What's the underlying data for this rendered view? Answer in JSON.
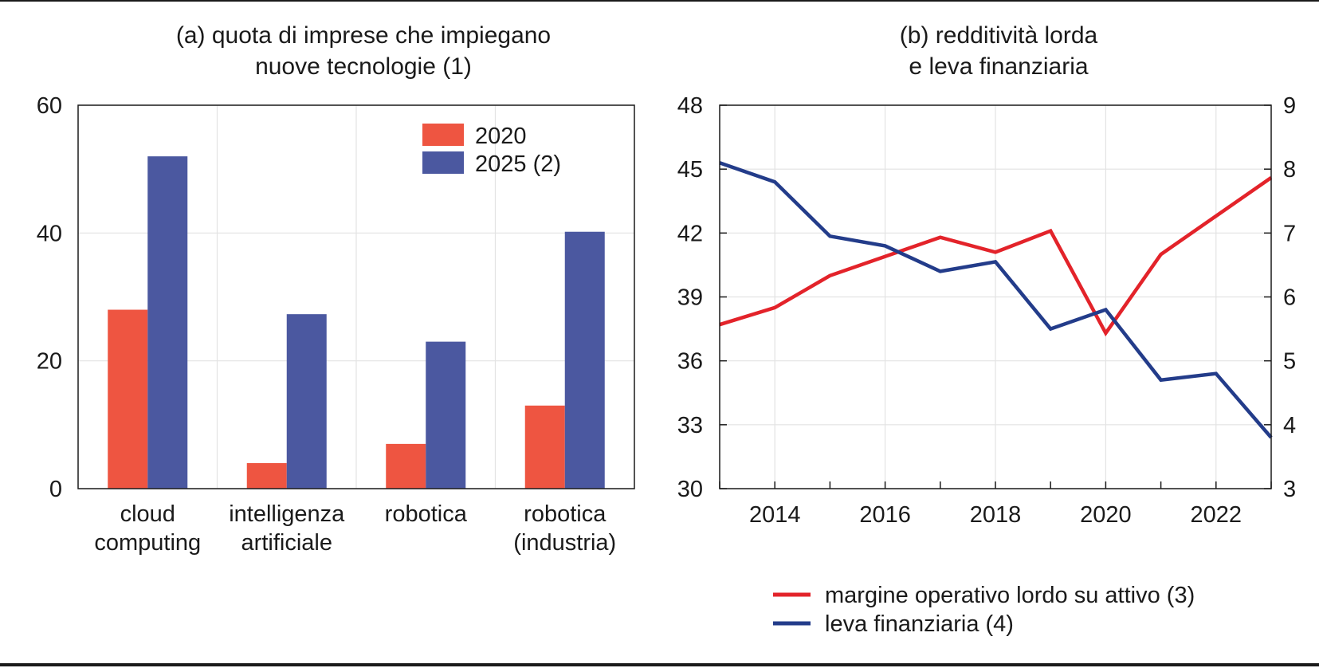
{
  "colors": {
    "red": "#EE5541",
    "blue": "#4B58A0",
    "red_line": "#E3232A",
    "blue_line": "#233C8A",
    "grid": "#E3E3E3",
    "axis": "#1a1a1a"
  },
  "chart_data": [
    {
      "type": "bar",
      "title_lines": [
        "(a) quota di imprese che impiegano",
        "nuove tecnologie (1)"
      ],
      "categories": [
        [
          "cloud",
          "computing"
        ],
        [
          "intelligenza",
          "artificiale"
        ],
        [
          "robotica"
        ],
        [
          "robotica",
          "(industria)"
        ]
      ],
      "series": [
        {
          "name": "2020",
          "values": [
            28,
            4,
            7,
            13
          ]
        },
        {
          "name": "2025 (2)",
          "values": [
            52,
            27.3,
            23,
            40.2
          ]
        }
      ],
      "ylim": [
        0,
        60
      ],
      "yticks": [
        "0",
        "20",
        "40",
        "60"
      ],
      "legend_position": "top-right"
    },
    {
      "type": "line",
      "title_lines": [
        "(b) redditività lorda",
        "e leva finanziaria"
      ],
      "x": [
        2013,
        2014,
        2015,
        2016,
        2017,
        2018,
        2019,
        2020,
        2021,
        2022,
        2023
      ],
      "xlim": [
        2013,
        2023
      ],
      "xticks": [
        "2014",
        "2016",
        "2018",
        "2020",
        "2022"
      ],
      "ylim_left": [
        30,
        48
      ],
      "yticks_left": [
        "30",
        "33",
        "36",
        "39",
        "42",
        "45",
        "48"
      ],
      "ylim_right": [
        3,
        9
      ],
      "yticks_right": [
        "3",
        "4",
        "5",
        "6",
        "7",
        "8",
        "9"
      ],
      "series": [
        {
          "name": "margine operativo lordo su attivo (3)",
          "axis": "left",
          "values": [
            37.7,
            38.5,
            40.0,
            40.9,
            41.8,
            41.1,
            42.1,
            37.3,
            41.0,
            42.8,
            44.6
          ]
        },
        {
          "name": "leva finanziaria (4)",
          "axis": "right",
          "values": [
            8.1,
            7.8,
            6.95,
            6.8,
            6.4,
            6.55,
            5.5,
            5.8,
            4.7,
            4.8,
            3.8
          ]
        }
      ],
      "legend_position": "bottom"
    }
  ]
}
